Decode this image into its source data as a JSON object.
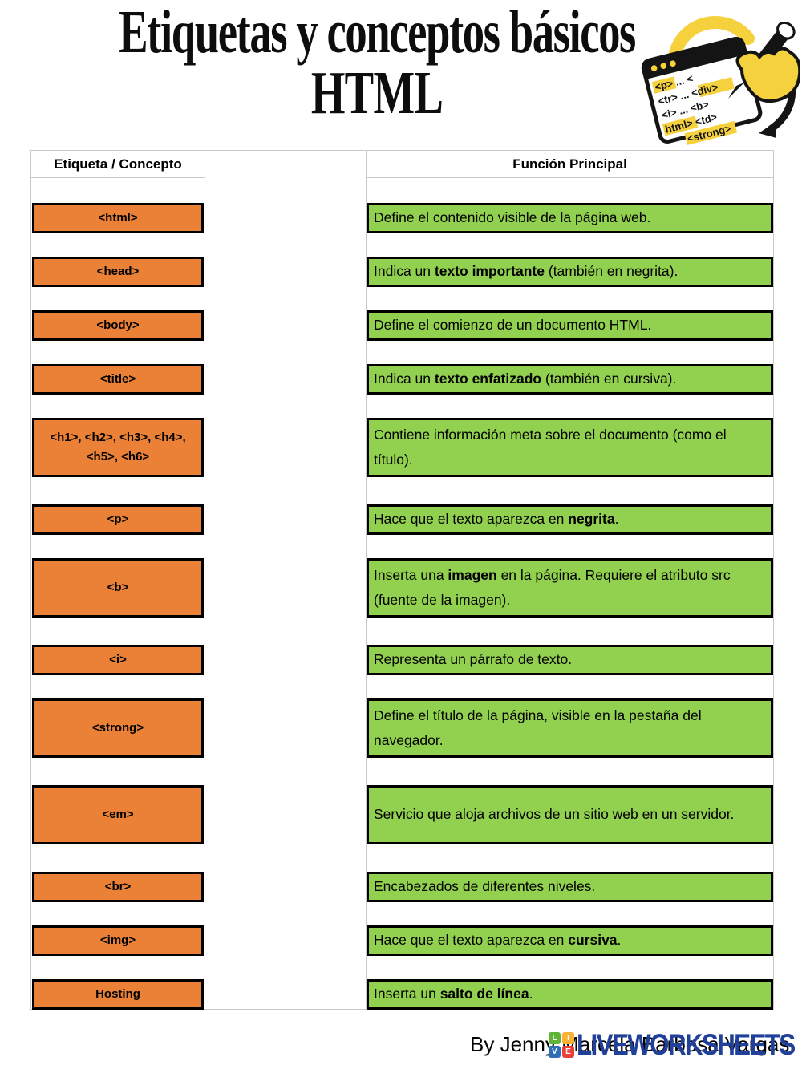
{
  "title": {
    "line1": "Etiquetas y conceptos básicos",
    "line2": "HTML"
  },
  "illustration": {
    "name": "hand-highlighting-html-tags",
    "highlight_color": "#F5D23D",
    "lines": [
      "<p> ... <",
      "<tr> ... <div>",
      "<i> ... <b>",
      "html> <td>",
      "<strong>"
    ]
  },
  "table": {
    "header": {
      "left": "Etiqueta / Concepto",
      "right": "Función Principal"
    },
    "colors": {
      "tag_bg": "#EA8137",
      "desc_bg": "#92D050",
      "box_border": "#000000",
      "grid": "#C9C9C9"
    },
    "rows": [
      {
        "tag": "<html>",
        "tall": false,
        "desc": [
          {
            "t": "Define el contenido visible de la página web.",
            "b": false
          }
        ]
      },
      {
        "tag": "<head>",
        "tall": false,
        "desc": [
          {
            "t": "Indica un ",
            "b": false
          },
          {
            "t": "texto importante",
            "b": true
          },
          {
            "t": " (también en negrita).",
            "b": false
          }
        ]
      },
      {
        "tag": "<body>",
        "tall": false,
        "desc": [
          {
            "t": "Define el comienzo de un documento HTML.",
            "b": false
          }
        ]
      },
      {
        "tag": "<title>",
        "tall": false,
        "desc": [
          {
            "t": "Indica un ",
            "b": false
          },
          {
            "t": "texto enfatizado",
            "b": true
          },
          {
            "t": " (también en cursiva).",
            "b": false
          }
        ]
      },
      {
        "tag": "<h1>, <h2>, <h3>, <h4>, <h5>, <h6>",
        "tall": true,
        "desc": [
          {
            "t": "Contiene información meta sobre el documento (como el título).",
            "b": false
          }
        ]
      },
      {
        "tag": "<p>",
        "tall": false,
        "desc": [
          {
            "t": "Hace que el texto aparezca en ",
            "b": false
          },
          {
            "t": "negrita",
            "b": true
          },
          {
            "t": ".",
            "b": false
          }
        ]
      },
      {
        "tag": "<b>",
        "tall": true,
        "desc": [
          {
            "t": "Inserta una ",
            "b": false
          },
          {
            "t": "imagen",
            "b": true
          },
          {
            "t": " en la página. Requiere el atributo src (fuente de la imagen).",
            "b": false
          }
        ]
      },
      {
        "tag": "<i>",
        "tall": false,
        "desc": [
          {
            "t": "Representa un párrafo de texto.",
            "b": false
          }
        ]
      },
      {
        "tag": "<strong>",
        "tall": true,
        "desc": [
          {
            "t": "Define el título de la página, visible en la pestaña del navegador.",
            "b": false
          }
        ]
      },
      {
        "tag": "<em>",
        "tall": true,
        "desc": [
          {
            "t": "Servicio que aloja archivos de un sitio web en un servidor.",
            "b": false
          }
        ]
      },
      {
        "tag": "<br>",
        "tall": false,
        "desc": [
          {
            "t": "Encabezados de diferentes niveles.",
            "b": false
          }
        ]
      },
      {
        "tag": "<img>",
        "tall": false,
        "desc": [
          {
            "t": "Hace que el texto aparezca en ",
            "b": false
          },
          {
            "t": "cursiva",
            "b": true
          },
          {
            "t": ".",
            "b": false
          }
        ]
      },
      {
        "tag": "Hosting",
        "tall": false,
        "desc": [
          {
            "t": "Inserta un ",
            "b": false
          },
          {
            "t": "salto de línea",
            "b": true
          },
          {
            "t": ".",
            "b": false
          }
        ]
      }
    ]
  },
  "footer": {
    "credit": "By Jenny Marcela Barbosa Vargas",
    "watermark": {
      "text": "LIVEWORKSHEETS",
      "text_color": "#21409A",
      "blocks": [
        {
          "letter": "L",
          "color": "#5FB336"
        },
        {
          "letter": "I",
          "color": "#F9B233"
        },
        {
          "letter": "V",
          "color": "#2D6DB5"
        },
        {
          "letter": "E",
          "color": "#E8413C"
        }
      ]
    }
  }
}
